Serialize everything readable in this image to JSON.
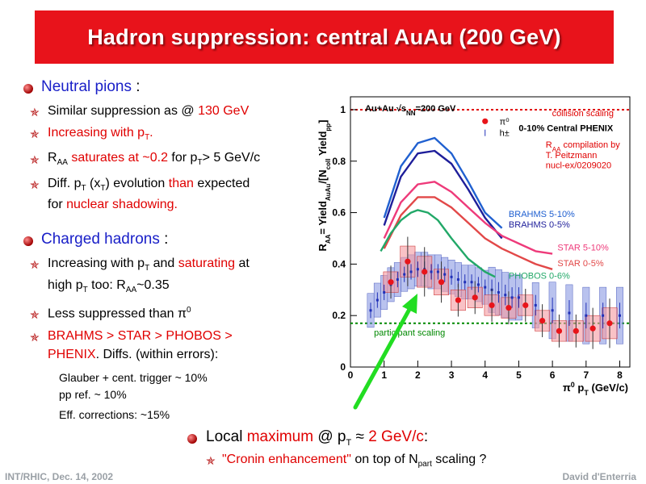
{
  "title": "Hadron suppression: central AuAu (200 GeV)",
  "left": {
    "neutral": {
      "heading": "Neutral pions",
      "heading_suffix": " :",
      "b1_a": "Similar suppression as @ ",
      "b1_b": "130 GeV",
      "b2": "Increasing with p",
      "b2_sub": "T",
      "b2_tail": ".",
      "b3_a": "R",
      "b3_sub": "AA",
      "b3_b": " saturates at ~0.2",
      "b3_c": " for p",
      "b3_sub2": "T",
      "b3_d": "> 5 GeV/c",
      "b4_a": "Diff. p",
      "b4_sub": "T",
      "b4_b": " (x",
      "b4_sub2": "T",
      "b4_c": ") evolution ",
      "b4_d": "than",
      "b4_e": " expected",
      "b4_f": "for ",
      "b4_g": "nuclear shadowing."
    },
    "charged": {
      "heading": "Charged hadrons",
      "heading_suffix": " :",
      "b1_a": "Increasing with p",
      "b1_sub": "T",
      "b1_b": " and ",
      "b1_c": "saturating",
      "b1_d": " at",
      "b1_e": "high p",
      "b1_sub2": "T",
      "b1_f": " too: R",
      "b1_sub3": "AA",
      "b1_g": "~0.35",
      "b2": "Less suppressed than π",
      "b2_sup": "0",
      "b3_a": "BRAHMS > STAR > PHOBOS >",
      "b3_b": "PHENIX",
      "b3_c": ". Diffs. (within errors):",
      "n1": "Glauber + cent. trigger ~ 10%",
      "n2": "pp ref. ~ 10%",
      "n3": "Eff. corrections: ~15%"
    }
  },
  "bottom": {
    "b1_a": "Local ",
    "b1_b": "maximum",
    "b1_c": " @ p",
    "b1_sub": "T",
    "b1_d": " ≈ ",
    "b1_e": "2 GeV/c",
    "b1_f": ":",
    "b2_a": "\"Cronin enhancement\"",
    "b2_b": " on top of N",
    "b2_sub": "part",
    "b2_c": " scaling ?"
  },
  "footer": {
    "left": "INT/RHIC, Dec. 14, 2002",
    "right": "David d'Enterria"
  },
  "chart_data": {
    "type": "scatter",
    "xlabel": "π⁰ p_T (GeV/c)",
    "ylabel": "R_AA = Yield_AuAu/[N_coll Yield_pp]",
    "xlim": [
      0,
      8.3
    ],
    "ylim": [
      0,
      1.05
    ],
    "xticks": [
      0,
      1,
      2,
      3,
      4,
      5,
      6,
      7,
      8
    ],
    "yticks": [
      0,
      0.2,
      0.4,
      0.6,
      0.8,
      1
    ],
    "ytick_labels": [
      "0",
      "0.2",
      "0.4",
      "0.6",
      "0.8",
      "1"
    ],
    "grid": false,
    "annotations": {
      "system": "Au+Au √s_NN=200 GeV",
      "collision_scaling": "collision scaling",
      "participant_scaling": "participant scaling",
      "centrality": "0-10% Central PHENIX",
      "raa_compilation_1": "R_AA compilation by",
      "raa_compilation_2": "T. Peitzmann",
      "raa_compilation_3": "nucl-ex/0209020",
      "legend_pi0": "π⁰",
      "legend_h": "h±"
    },
    "reference_lines": [
      {
        "name": "collision scaling",
        "y": 1.0,
        "color": "#e00000"
      },
      {
        "name": "participant scaling",
        "y": 0.17,
        "color": "#008800"
      }
    ],
    "series": [
      {
        "name": "π⁰",
        "color": "#e8141a",
        "x": [
          1.2,
          1.7,
          2.2,
          2.7,
          3.2,
          3.7,
          4.2,
          4.7,
          5.2,
          5.7,
          6.2,
          6.7,
          7.2,
          7.7
        ],
        "y": [
          0.33,
          0.41,
          0.37,
          0.33,
          0.26,
          0.27,
          0.24,
          0.23,
          0.24,
          0.18,
          0.14,
          0.14,
          0.15,
          0.17
        ],
        "err": [
          0.04,
          0.06,
          0.06,
          0.05,
          0.04,
          0.04,
          0.04,
          0.04,
          0.04,
          0.04,
          0.04,
          0.04,
          0.05,
          0.06
        ]
      },
      {
        "name": "h±",
        "color": "#2030b8",
        "x": [
          0.6,
          0.8,
          1.0,
          1.2,
          1.4,
          1.6,
          1.8,
          2.0,
          2.2,
          2.4,
          2.6,
          2.8,
          3.0,
          3.2,
          3.4,
          3.6,
          3.8,
          4.0,
          4.2,
          4.4,
          4.6,
          4.8,
          5.0,
          5.5,
          6.0,
          6.5,
          7.0,
          7.5,
          8.0
        ],
        "y": [
          0.22,
          0.26,
          0.29,
          0.32,
          0.34,
          0.36,
          0.37,
          0.38,
          0.38,
          0.37,
          0.37,
          0.36,
          0.35,
          0.34,
          0.33,
          0.33,
          0.32,
          0.31,
          0.3,
          0.29,
          0.28,
          0.27,
          0.27,
          0.24,
          0.22,
          0.21,
          0.2,
          0.2,
          0.2
        ],
        "err": [
          0.03,
          0.03,
          0.03,
          0.03,
          0.03,
          0.03,
          0.03,
          0.03,
          0.03,
          0.03,
          0.03,
          0.03,
          0.03,
          0.03,
          0.03,
          0.03,
          0.03,
          0.03,
          0.04,
          0.04,
          0.04,
          0.04,
          0.04,
          0.04,
          0.05,
          0.05,
          0.05,
          0.05,
          0.05
        ]
      }
    ],
    "curves": [
      {
        "name": "BRAHMS 5-10%",
        "color": "#2060d0",
        "x": [
          1.0,
          1.5,
          2.0,
          2.5,
          3.0,
          3.5,
          4.0,
          4.5
        ],
        "y": [
          0.58,
          0.78,
          0.87,
          0.89,
          0.83,
          0.72,
          0.6,
          0.54
        ]
      },
      {
        "name": "BRAHMS 0-5%",
        "color": "#1e1e9a",
        "x": [
          1.0,
          1.5,
          2.0,
          2.5,
          3.0,
          3.5,
          4.0,
          4.5
        ],
        "y": [
          0.55,
          0.74,
          0.83,
          0.84,
          0.79,
          0.69,
          0.58,
          0.5
        ]
      },
      {
        "name": "STAR 5-10%",
        "color": "#ee3a7a",
        "x": [
          1.0,
          1.5,
          2.0,
          2.5,
          3.0,
          3.5,
          4.0,
          4.5,
          5.0,
          5.5,
          6.0
        ],
        "y": [
          0.5,
          0.64,
          0.71,
          0.72,
          0.68,
          0.62,
          0.56,
          0.51,
          0.48,
          0.45,
          0.44
        ]
      },
      {
        "name": "STAR 0-5%",
        "color": "#e24848",
        "x": [
          1.0,
          1.5,
          2.0,
          2.5,
          3.0,
          3.5,
          4.0,
          4.5,
          5.0,
          5.5,
          6.0
        ],
        "y": [
          0.46,
          0.59,
          0.66,
          0.66,
          0.62,
          0.56,
          0.5,
          0.46,
          0.43,
          0.4,
          0.38
        ]
      },
      {
        "name": "PHOBOS 0-6%",
        "color": "#22a868",
        "x": [
          0.9,
          1.2,
          1.5,
          1.8,
          2.0,
          2.3,
          2.6,
          3.0,
          3.5,
          4.0,
          4.3
        ],
        "y": [
          0.45,
          0.52,
          0.57,
          0.6,
          0.61,
          0.6,
          0.57,
          0.5,
          0.42,
          0.37,
          0.35
        ]
      }
    ]
  }
}
